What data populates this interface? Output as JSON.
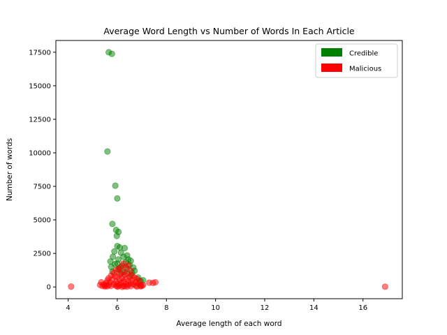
{
  "chart_data": {
    "type": "scatter",
    "title": "Average Word Length vs Number of Words In Each Article",
    "xlabel": "Average length of each word",
    "ylabel": "Number of words",
    "xlim": [
      3.5,
      17.6
    ],
    "ylim": [
      -875,
      18375
    ],
    "xticks": [
      4,
      6,
      8,
      10,
      12,
      14,
      16
    ],
    "yticks": [
      0,
      2500,
      5000,
      7500,
      10000,
      12500,
      15000,
      17500
    ],
    "grid": false,
    "legend_position": "top-right",
    "point_alpha": 0.5,
    "series": [
      {
        "name": "Credible",
        "color": "#008000",
        "points": [
          [
            5.65,
            17500
          ],
          [
            5.78,
            17380
          ],
          [
            5.6,
            10100
          ],
          [
            5.92,
            7550
          ],
          [
            6.0,
            6600
          ],
          [
            5.8,
            4700
          ],
          [
            5.95,
            4250
          ],
          [
            6.05,
            4100
          ],
          [
            5.98,
            3800
          ],
          [
            6.0,
            3050
          ],
          [
            6.1,
            2950
          ],
          [
            6.3,
            2900
          ],
          [
            5.88,
            2650
          ],
          [
            6.15,
            2550
          ],
          [
            6.4,
            2350
          ],
          [
            5.82,
            2250
          ],
          [
            6.25,
            2250
          ],
          [
            6.05,
            2050
          ],
          [
            6.45,
            2050
          ],
          [
            6.55,
            1950
          ],
          [
            5.72,
            1900
          ],
          [
            6.35,
            1850
          ],
          [
            6.0,
            1750
          ],
          [
            6.5,
            1650
          ],
          [
            5.9,
            1700
          ],
          [
            6.2,
            1600
          ],
          [
            6.65,
            1450
          ],
          [
            5.75,
            1500
          ],
          [
            6.1,
            1400
          ],
          [
            6.4,
            1350
          ],
          [
            6.05,
            1300
          ],
          [
            6.7,
            1200
          ],
          [
            5.8,
            1150
          ],
          [
            6.3,
            1100
          ],
          [
            6.6,
            1050
          ],
          [
            6.85,
            700
          ],
          [
            7.05,
            500
          ],
          [
            6.95,
            450
          ],
          [
            6.15,
            1000
          ],
          [
            6.55,
            900
          ]
        ]
      },
      {
        "name": "Malicious",
        "color": "#ff0000",
        "points": [
          [
            4.12,
            30
          ],
          [
            16.9,
            20
          ],
          [
            7.55,
            350
          ],
          [
            7.45,
            300
          ],
          [
            7.3,
            320
          ],
          [
            7.05,
            150
          ],
          [
            6.95,
            120
          ],
          [
            7.0,
            80
          ],
          [
            5.35,
            350
          ],
          [
            5.3,
            150
          ],
          [
            5.45,
            200
          ],
          [
            5.5,
            100
          ],
          [
            6.25,
            1750
          ],
          [
            6.45,
            1600
          ],
          [
            6.15,
            1500
          ],
          [
            6.35,
            1450
          ],
          [
            6.05,
            1350
          ],
          [
            5.95,
            1250
          ],
          [
            6.55,
            1200
          ],
          [
            6.2,
            1100
          ],
          [
            5.85,
            1050
          ],
          [
            6.4,
            1000
          ],
          [
            6.1,
            950
          ],
          [
            6.3,
            900
          ],
          [
            6.6,
            850
          ],
          [
            5.75,
            850
          ],
          [
            5.9,
            800
          ],
          [
            6.0,
            750
          ],
          [
            6.5,
            750
          ],
          [
            6.7,
            700
          ],
          [
            5.65,
            650
          ],
          [
            6.2,
            650
          ],
          [
            6.8,
            600
          ],
          [
            6.35,
            600
          ],
          [
            5.8,
            550
          ],
          [
            6.1,
            550
          ],
          [
            5.6,
            500
          ],
          [
            6.6,
            500
          ],
          [
            6.9,
            450
          ],
          [
            6.45,
            450
          ],
          [
            5.95,
            400
          ],
          [
            6.25,
            400
          ],
          [
            5.7,
            350
          ],
          [
            6.75,
            350
          ],
          [
            6.15,
            300
          ],
          [
            5.55,
            300
          ],
          [
            6.55,
            300
          ],
          [
            6.0,
            250
          ],
          [
            6.85,
            250
          ],
          [
            5.85,
            200
          ],
          [
            6.35,
            200
          ],
          [
            6.65,
            200
          ],
          [
            5.65,
            150
          ],
          [
            6.1,
            150
          ],
          [
            6.45,
            150
          ],
          [
            5.95,
            100
          ],
          [
            6.25,
            100
          ],
          [
            6.75,
            100
          ],
          [
            5.75,
            80
          ],
          [
            6.05,
            60
          ],
          [
            6.55,
            60
          ],
          [
            5.6,
            50
          ],
          [
            6.3,
            50
          ],
          [
            6.95,
            50
          ],
          [
            5.5,
            40
          ],
          [
            5.4,
            70
          ],
          [
            6.4,
            30
          ],
          [
            6.0,
            20
          ],
          [
            6.2,
            10
          ],
          [
            6.8,
            30
          ]
        ]
      }
    ]
  }
}
